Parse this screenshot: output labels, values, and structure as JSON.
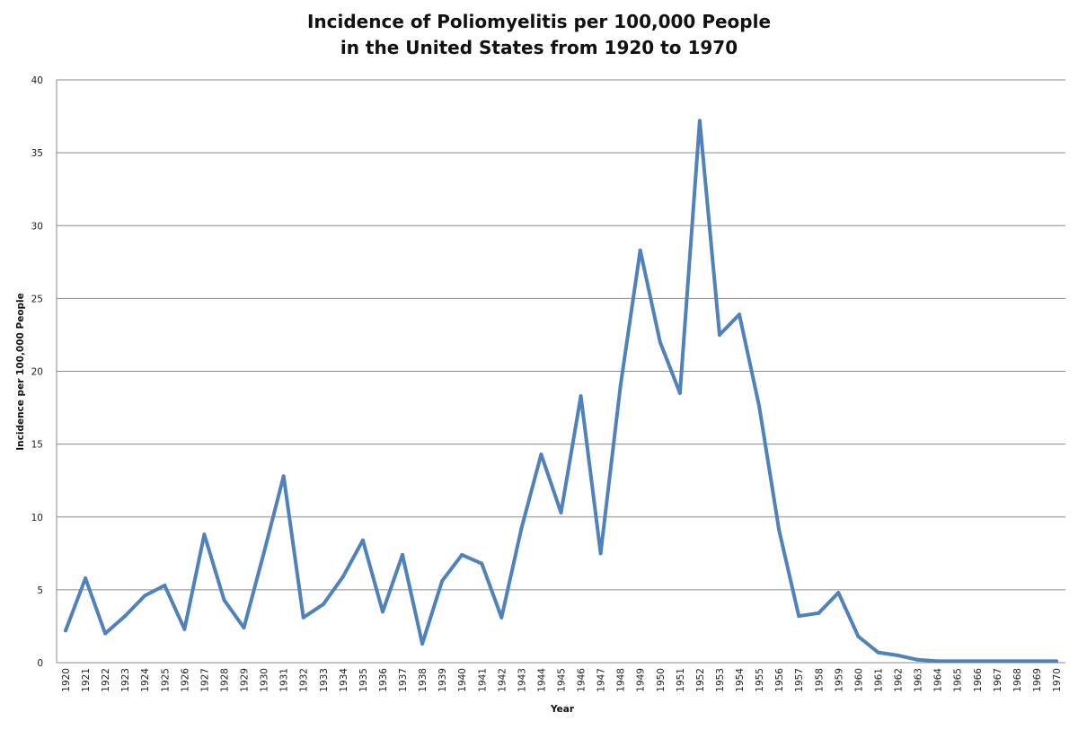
{
  "chart_data": {
    "type": "line",
    "title_lines": [
      "Incidence of Poliomyelitis per 100,000 People",
      "in the United States from 1920 to 1970"
    ],
    "xlabel": "Year",
    "ylabel": "Incidence per 100,000 People",
    "ylim": [
      0,
      40
    ],
    "yticks": [
      0,
      5,
      10,
      15,
      20,
      25,
      30,
      35,
      40
    ],
    "grid": "horizontal",
    "legend": "none",
    "line_color": "#4F81BD",
    "x": [
      1920,
      1921,
      1922,
      1923,
      1924,
      1925,
      1926,
      1927,
      1928,
      1929,
      1930,
      1931,
      1932,
      1933,
      1934,
      1935,
      1936,
      1937,
      1938,
      1939,
      1940,
      1941,
      1942,
      1943,
      1944,
      1945,
      1946,
      1947,
      1948,
      1949,
      1950,
      1951,
      1952,
      1953,
      1954,
      1955,
      1956,
      1957,
      1958,
      1959,
      1960,
      1961,
      1962,
      1963,
      1964,
      1965,
      1966,
      1967,
      1968,
      1969,
      1970
    ],
    "series": [
      {
        "values": [
          2.2,
          5.8,
          2.0,
          3.2,
          4.6,
          5.3,
          2.3,
          8.8,
          4.3,
          2.4,
          7.5,
          12.8,
          3.1,
          4.0,
          5.9,
          8.4,
          3.5,
          7.4,
          1.3,
          5.6,
          7.4,
          6.8,
          3.1,
          9.2,
          14.3,
          10.3,
          18.3,
          7.5,
          19.0,
          28.3,
          22.0,
          18.5,
          37.2,
          22.5,
          23.9,
          17.6,
          9.1,
          3.2,
          3.4,
          4.8,
          1.8,
          0.7,
          0.5,
          0.2,
          0.1,
          0.1,
          0.1,
          0.1,
          0.1,
          0.1,
          0.1
        ]
      }
    ]
  }
}
